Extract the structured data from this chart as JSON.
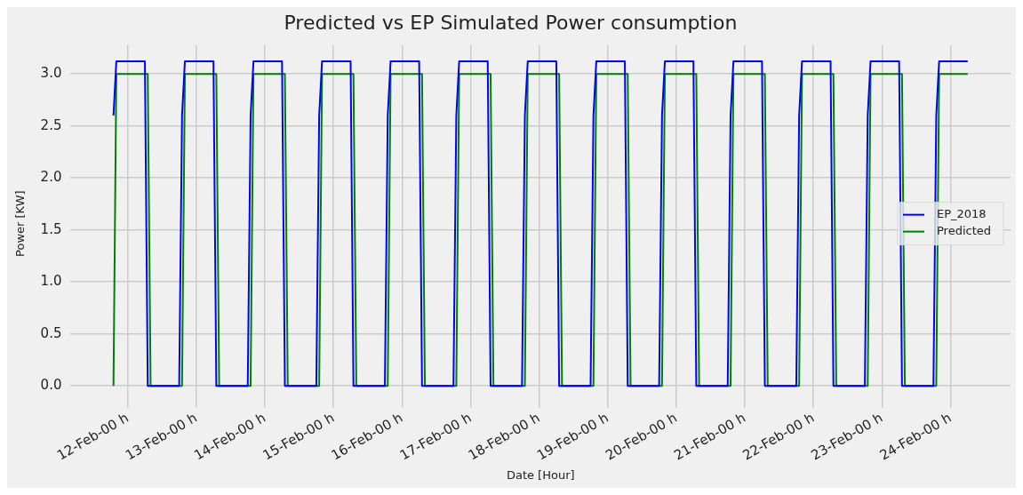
{
  "chart_data": {
    "type": "line",
    "title": "Predicted vs EP Simulated Power consumption",
    "xlabel": "Date [Hour]",
    "ylabel": "Power [KW]",
    "xlim": [
      "--02-11T04:00",
      "--02-24T21:00"
    ],
    "xticks": [
      {
        "value": "--02-12T00:00",
        "label": "12-Feb-00 h"
      },
      {
        "value": "--02-13T00:00",
        "label": "13-Feb-00 h"
      },
      {
        "value": "--02-14T00:00",
        "label": "14-Feb-00 h"
      },
      {
        "value": "--02-15T00:00",
        "label": "15-Feb-00 h"
      },
      {
        "value": "--02-16T00:00",
        "label": "16-Feb-00 h"
      },
      {
        "value": "--02-17T00:00",
        "label": "17-Feb-00 h"
      },
      {
        "value": "--02-18T00:00",
        "label": "18-Feb-00 h"
      },
      {
        "value": "--02-19T00:00",
        "label": "19-Feb-00 h"
      },
      {
        "value": "--02-20T00:00",
        "label": "20-Feb-00 h"
      },
      {
        "value": "--02-21T00:00",
        "label": "21-Feb-00 h"
      },
      {
        "value": "--02-22T00:00",
        "label": "22-Feb-00 h"
      },
      {
        "value": "--02-23T00:00",
        "label": "23-Feb-00 h"
      },
      {
        "value": "--02-24T00:00",
        "label": "24-Feb-00 h"
      }
    ],
    "ylim": [
      -0.16,
      3.28
    ],
    "yticks": [
      {
        "value": 0,
        "label": "0.0"
      },
      {
        "value": 0.5,
        "label": "0.5"
      },
      {
        "value": 1,
        "label": "1.0"
      },
      {
        "value": 1.5,
        "label": "1.5"
      },
      {
        "value": 2,
        "label": "2.0"
      },
      {
        "value": 2.5,
        "label": "2.5"
      },
      {
        "value": 3,
        "label": "3.0"
      }
    ],
    "grid": true,
    "legend": "right",
    "line_style": "solid",
    "series": [
      {
        "name": "EP_2018",
        "color": "#0000ff",
        "x": [
          "--02-11T19:00",
          "--02-11T20:00",
          "--02-12T06:00",
          "--02-12T07:00",
          "--02-12T18:00",
          "--02-12T19:00",
          "--02-12T20:00",
          "--02-13T06:00",
          "--02-13T07:00",
          "--02-13T18:00",
          "--02-13T19:00",
          "--02-13T20:00",
          "--02-14T06:00",
          "--02-14T07:00",
          "--02-14T18:00",
          "--02-14T19:00",
          "--02-14T20:00",
          "--02-15T06:00",
          "--02-15T07:00",
          "--02-15T18:00",
          "--02-15T19:00",
          "--02-15T20:00",
          "--02-16T06:00",
          "--02-16T07:00",
          "--02-16T18:00",
          "--02-16T19:00",
          "--02-16T20:00",
          "--02-17T06:00",
          "--02-17T07:00",
          "--02-17T18:00",
          "--02-17T19:00",
          "--02-17T20:00",
          "--02-18T06:00",
          "--02-18T07:00",
          "--02-18T18:00",
          "--02-18T19:00",
          "--02-18T20:00",
          "--02-19T06:00",
          "--02-19T07:00",
          "--02-19T18:00",
          "--02-19T19:00",
          "--02-19T20:00",
          "--02-20T06:00",
          "--02-20T07:00",
          "--02-20T18:00",
          "--02-20T19:00",
          "--02-20T20:00",
          "--02-21T06:00",
          "--02-21T07:00",
          "--02-21T18:00",
          "--02-21T19:00",
          "--02-21T20:00",
          "--02-22T06:00",
          "--02-22T07:00",
          "--02-22T18:00",
          "--02-22T19:00",
          "--02-22T20:00",
          "--02-23T06:00",
          "--02-23T07:00",
          "--02-23T18:00",
          "--02-23T19:00",
          "--02-23T20:00",
          "--02-24T06:00"
        ],
        "values": [
          2.6,
          3.12,
          3.12,
          0,
          0,
          2.6,
          3.12,
          3.12,
          0,
          0,
          2.6,
          3.12,
          3.12,
          0,
          0,
          2.6,
          3.12,
          3.12,
          0,
          0,
          2.6,
          3.12,
          3.12,
          0,
          0,
          2.6,
          3.12,
          3.12,
          0,
          0,
          2.6,
          3.12,
          3.12,
          0,
          0,
          2.6,
          3.12,
          3.12,
          0,
          0,
          2.6,
          3.12,
          3.12,
          0,
          0,
          2.6,
          3.12,
          3.12,
          0,
          0,
          2.6,
          3.12,
          3.12,
          0,
          0,
          2.6,
          3.12,
          3.12,
          0,
          0,
          2.6,
          3.12,
          3.12
        ]
      },
      {
        "name": "Predicted",
        "color": "#008000",
        "x": [
          "--02-11T19:00",
          "--02-11T20:00",
          "--02-12T07:00",
          "--02-12T08:00",
          "--02-12T19:00",
          "--02-12T20:00",
          "--02-13T07:00",
          "--02-13T08:00",
          "--02-13T19:00",
          "--02-13T20:00",
          "--02-14T07:00",
          "--02-14T08:00",
          "--02-14T19:00",
          "--02-14T20:00",
          "--02-15T07:00",
          "--02-15T08:00",
          "--02-15T19:00",
          "--02-15T20:00",
          "--02-16T07:00",
          "--02-16T08:00",
          "--02-16T19:00",
          "--02-16T20:00",
          "--02-17T07:00",
          "--02-17T08:00",
          "--02-17T19:00",
          "--02-17T20:00",
          "--02-18T07:00",
          "--02-18T08:00",
          "--02-18T19:00",
          "--02-18T20:00",
          "--02-19T07:00",
          "--02-19T08:00",
          "--02-19T19:00",
          "--02-19T20:00",
          "--02-20T07:00",
          "--02-20T08:00",
          "--02-20T19:00",
          "--02-20T20:00",
          "--02-21T07:00",
          "--02-21T08:00",
          "--02-21T19:00",
          "--02-21T20:00",
          "--02-22T07:00",
          "--02-22T08:00",
          "--02-22T19:00",
          "--02-22T20:00",
          "--02-23T07:00",
          "--02-23T08:00",
          "--02-23T19:00",
          "--02-23T20:00",
          "--02-24T06:00"
        ],
        "values": [
          0,
          3,
          3,
          0,
          0,
          3,
          3,
          0,
          0,
          3,
          3,
          0,
          0,
          3,
          3,
          0,
          0,
          3,
          3,
          0,
          0,
          3,
          3,
          0,
          0,
          3,
          3,
          0,
          0,
          3,
          3,
          0,
          0,
          3,
          3,
          0,
          0,
          3,
          3,
          0,
          0,
          3,
          3,
          0,
          0,
          3,
          3,
          0,
          0,
          3,
          3
        ]
      }
    ]
  }
}
